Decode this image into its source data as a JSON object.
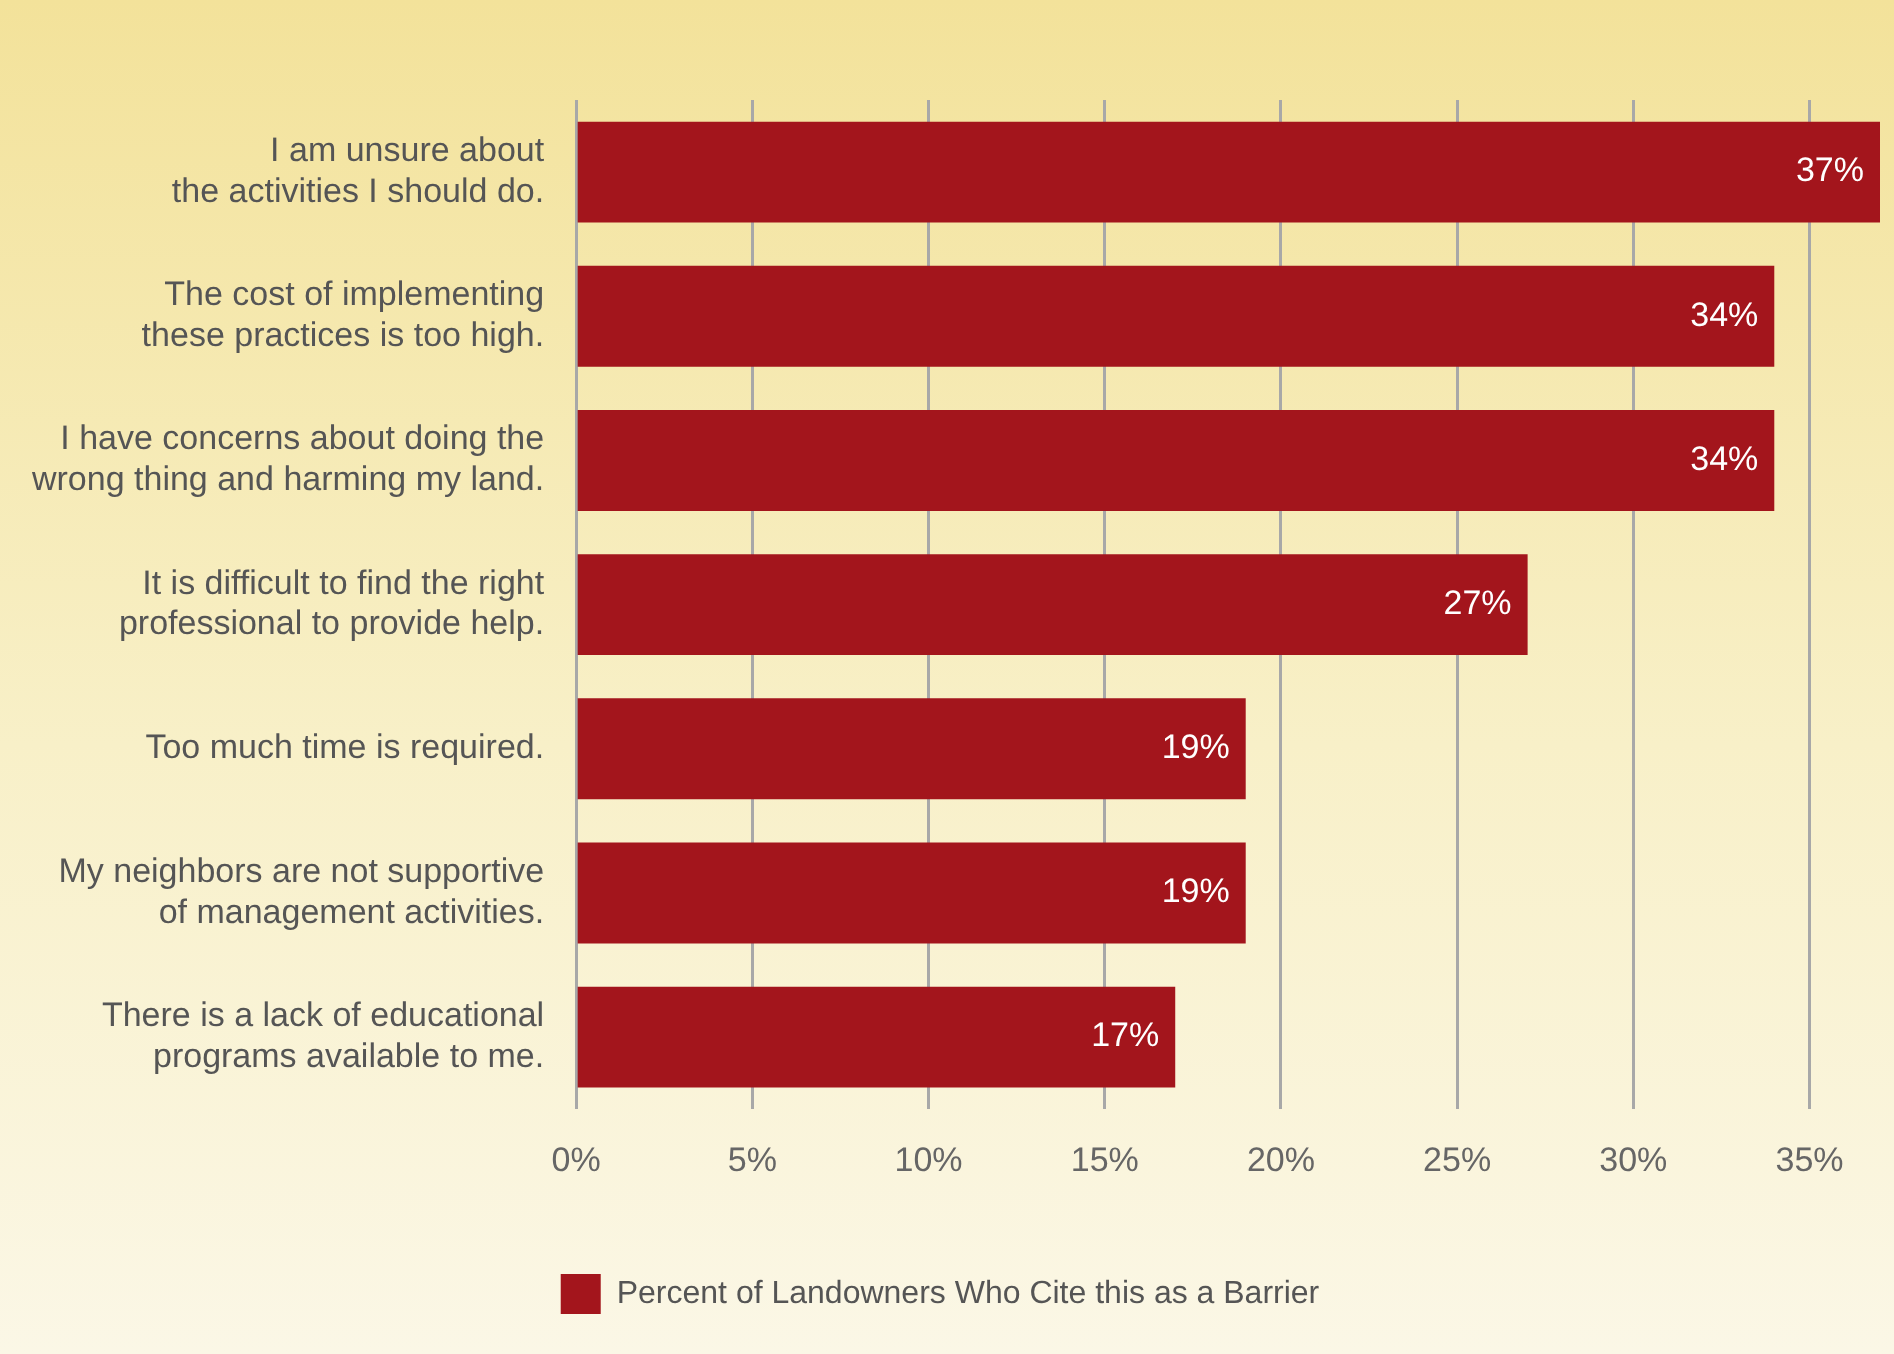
{
  "chart_data": {
    "type": "bar",
    "orientation": "horizontal",
    "categories": [
      "I am unsure about\nthe activities I should do.",
      "The cost of implementing\nthese practices is too high.",
      "I have concerns about doing the\nwrong thing and harming my land.",
      "It is difficult to find the right\nprofessional to provide help.",
      "Too much time is required.",
      "My neighbors are not supportive\nof management activities.",
      "There is a lack of educational\nprograms available to me."
    ],
    "series": [
      {
        "name": "Percent of Landowners Who Cite this as a Barrier",
        "color": "#a3151c",
        "values": [
          37,
          34,
          34,
          27,
          19,
          19,
          17
        ]
      }
    ],
    "xlim": [
      0,
      37
    ],
    "xticks": [
      {
        "value": 0,
        "label": "0%"
      },
      {
        "value": 5,
        "label": "5%"
      },
      {
        "value": 10,
        "label": "10%"
      },
      {
        "value": 15,
        "label": "15%"
      },
      {
        "value": 20,
        "label": "20%"
      },
      {
        "value": 25,
        "label": "25%"
      },
      {
        "value": 30,
        "label": "30%"
      },
      {
        "value": 35,
        "label": "35%"
      }
    ],
    "value_labels": [
      "37%",
      "34%",
      "34%",
      "27%",
      "19%",
      "19%",
      "17%"
    ],
    "grid": "x",
    "legend": "bottom"
  }
}
